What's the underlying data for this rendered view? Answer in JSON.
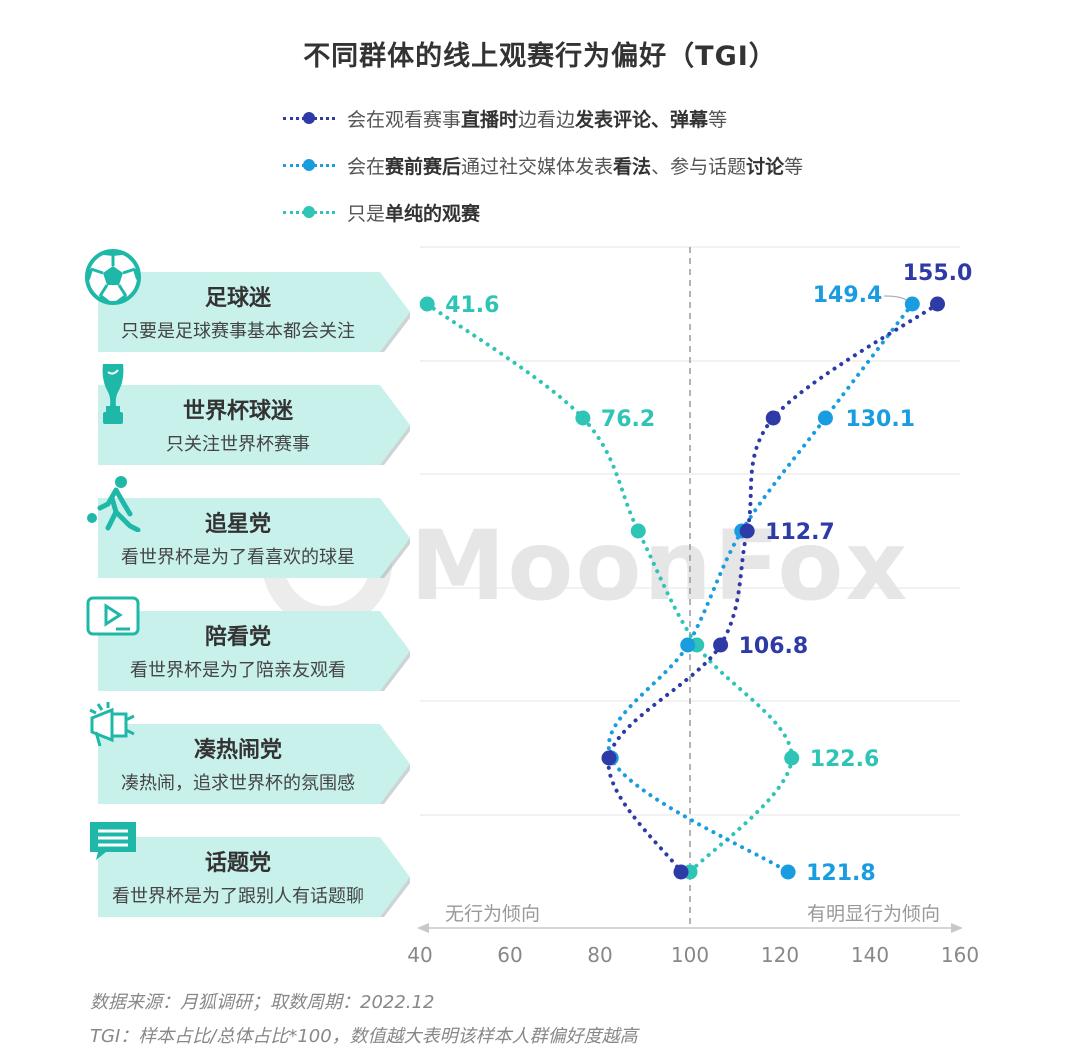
{
  "title": "不同群体的线上观赛行为偏好（TGI）",
  "legend": [
    {
      "parts": [
        {
          "t": "会在观看赛事",
          "b": false
        },
        {
          "t": "直播时",
          "b": true
        },
        {
          "t": "边看边",
          "b": false
        },
        {
          "t": "发表评论、弹幕",
          "b": true
        },
        {
          "t": "等",
          "b": false
        }
      ],
      "color": "#2e3aa6"
    },
    {
      "parts": [
        {
          "t": "会在",
          "b": false
        },
        {
          "t": "赛前赛后",
          "b": true
        },
        {
          "t": "通过社交媒体发表",
          "b": false
        },
        {
          "t": "看法",
          "b": true
        },
        {
          "t": "、参与话题",
          "b": false
        },
        {
          "t": "讨论",
          "b": true
        },
        {
          "t": "等",
          "b": false
        }
      ],
      "color": "#1a9de0"
    },
    {
      "parts": [
        {
          "t": "只是",
          "b": false
        },
        {
          "t": "单纯的观赛",
          "b": true
        }
      ],
      "color": "#2ec4b6"
    }
  ],
  "groups": [
    {
      "name": "足球迷",
      "desc": "只要是足球赛事基本都会关注",
      "icon": "soccer-ball-icon"
    },
    {
      "name": "世界杯球迷",
      "desc": "只关注世界杯赛事",
      "icon": "trophy-icon"
    },
    {
      "name": "追星党",
      "desc": "看世界杯是为了看喜欢的球星",
      "icon": "player-kicking-icon"
    },
    {
      "name": "陪看党",
      "desc": "看世界杯是为了陪亲友观看",
      "icon": "video-play-icon"
    },
    {
      "name": "凑热闹党",
      "desc": "凑热闹，追求世界杯的氛围感",
      "icon": "megaphone-icon"
    },
    {
      "name": "话题党",
      "desc": "看世界杯是为了跟别人有话题聊",
      "icon": "chat-bubble-icon"
    }
  ],
  "chart_data": {
    "type": "line",
    "orientation": "horizontal-categories-vertical",
    "categories": [
      "足球迷",
      "世界杯球迷",
      "追星党",
      "陪看党",
      "凑热闹党",
      "话题党"
    ],
    "series": [
      {
        "name": "会在观看赛事直播时边看边发表评论、弹幕等",
        "color": "#2e3aa6",
        "values": [
          155.0,
          118.5,
          112.7,
          106.8,
          82.0,
          98.0
        ],
        "labels": [
          "155.0",
          "",
          "112.7",
          "106.8",
          "",
          ""
        ]
      },
      {
        "name": "会在赛前赛后通过社交媒体发表看法、参与话题讨论等",
        "color": "#1a9de0",
        "values": [
          149.4,
          130.1,
          111.5,
          99.5,
          82.5,
          121.8
        ],
        "labels": [
          "149.4",
          "130.1",
          "",
          "",
          "",
          "121.8"
        ]
      },
      {
        "name": "只是单纯的观赛",
        "color": "#2ec4b6",
        "values": [
          41.6,
          76.2,
          88.5,
          101.5,
          122.6,
          100.0
        ],
        "labels": [
          "41.6",
          "76.2",
          "",
          "",
          "122.6",
          ""
        ]
      }
    ],
    "xlim": [
      40,
      160
    ],
    "xticks": [
      "40",
      "60",
      "80",
      "100",
      "120",
      "140",
      "160"
    ],
    "reference_value": 100,
    "axis_left_note": "无行为倾向",
    "axis_right_note": "有明显行为倾向"
  },
  "footnotes": {
    "source": "数据来源：月狐调研；取数周期：2022.12",
    "tgi": "TGI：样本占比/总体占比*100，数值越大表明该样本人群偏好度越高"
  },
  "watermark": "MoonFox"
}
